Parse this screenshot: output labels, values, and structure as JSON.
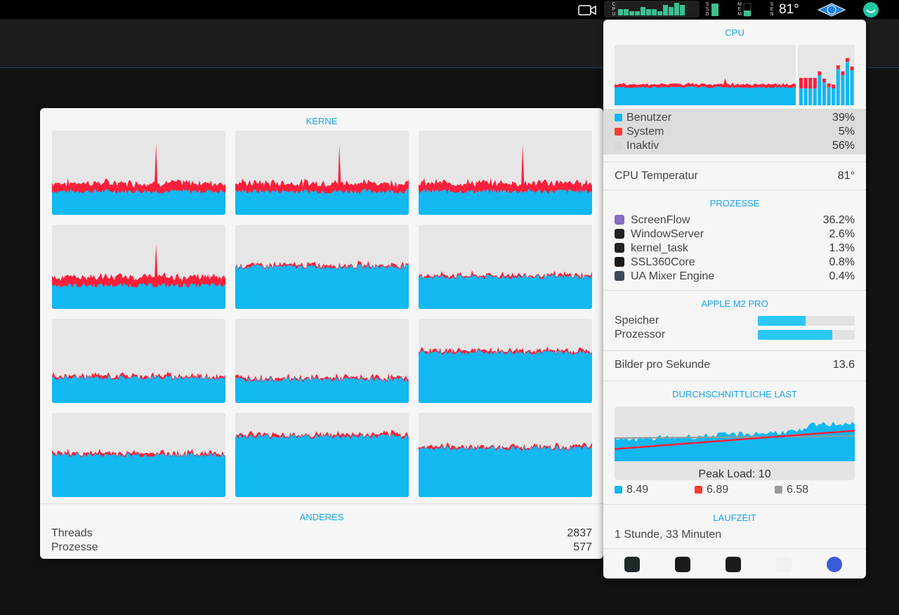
{
  "menubar": {
    "cpu_label": "CPU",
    "ssd_label": "SSD",
    "mem_label": "MEM",
    "sen_label": "SEN",
    "temperature": "81°",
    "cpu_history": [
      3,
      3,
      2,
      2,
      4,
      3,
      3,
      2,
      5,
      4,
      6,
      5
    ],
    "ssd_fill": 0.9,
    "mem_fill": 0.4,
    "accent": "#3dbf8f"
  },
  "kerne": {
    "title": "KERNE",
    "cores": [
      {
        "user": 28,
        "system": 10,
        "spike": true
      },
      {
        "user": 28,
        "system": 10,
        "spike": true
      },
      {
        "user": 28,
        "system": 10,
        "spike": true
      },
      {
        "user": 28,
        "system": 10,
        "spike": true
      },
      {
        "user": 50,
        "system": 2,
        "spike": false
      },
      {
        "user": 38,
        "system": 2,
        "spike": false
      },
      {
        "user": 30,
        "system": 2,
        "spike": false
      },
      {
        "user": 28,
        "system": 2,
        "spike": false
      },
      {
        "user": 60,
        "system": 2,
        "spike": false
      },
      {
        "user": 50,
        "system": 2,
        "spike": false
      },
      {
        "user": 72,
        "system": 2,
        "spike": false
      },
      {
        "user": 58,
        "system": 2,
        "spike": false
      }
    ],
    "other_title": "ANDERES",
    "threads_label": "Threads",
    "threads": "2837",
    "processes_label": "Prozesse",
    "processes": "577"
  },
  "cpu": {
    "title": "CPU",
    "legend": [
      {
        "label": "Benutzer",
        "value": "39%",
        "color": "#12b8f0"
      },
      {
        "label": "System",
        "value": "5%",
        "color": "#ff3b30"
      },
      {
        "label": "Inaktiv",
        "value": "56%",
        "color": "#d8d8d8"
      }
    ],
    "temp_label": "CPU Temperatur",
    "temp": "81°"
  },
  "processes": {
    "title": "PROZESSE",
    "items": [
      {
        "name": "ScreenFlow",
        "value": "36.2%"
      },
      {
        "name": "WindowServer",
        "value": "2.6%"
      },
      {
        "name": "kernel_task",
        "value": "1.3%"
      },
      {
        "name": "SSL360Core",
        "value": "0.8%"
      },
      {
        "name": "UA Mixer Engine",
        "value": "0.4%"
      }
    ]
  },
  "chip": {
    "title": "APPLE M2 PRO",
    "memory_label": "Speicher",
    "memory_fill": 0.49,
    "processor_label": "Prozessor",
    "processor_fill": 0.77
  },
  "fps": {
    "label": "Bilder pro Sekunde",
    "value": "13.6"
  },
  "load": {
    "title": "DURCHSCHNITTLICHE LAST",
    "peak_label": "Peak Load: 10",
    "values": [
      {
        "value": "8.49",
        "color": "#12b8f0"
      },
      {
        "value": "6.89",
        "color": "#ff3b30"
      },
      {
        "value": "6.58",
        "color": "#999999"
      }
    ]
  },
  "uptime": {
    "title": "LAUFZEIT",
    "value": "1 Stunde, 33 Minuten"
  },
  "footer": [
    "activity-monitor-icon",
    "console-icon",
    "terminal-icon",
    "system-information-icon",
    "istat-icon"
  ]
}
